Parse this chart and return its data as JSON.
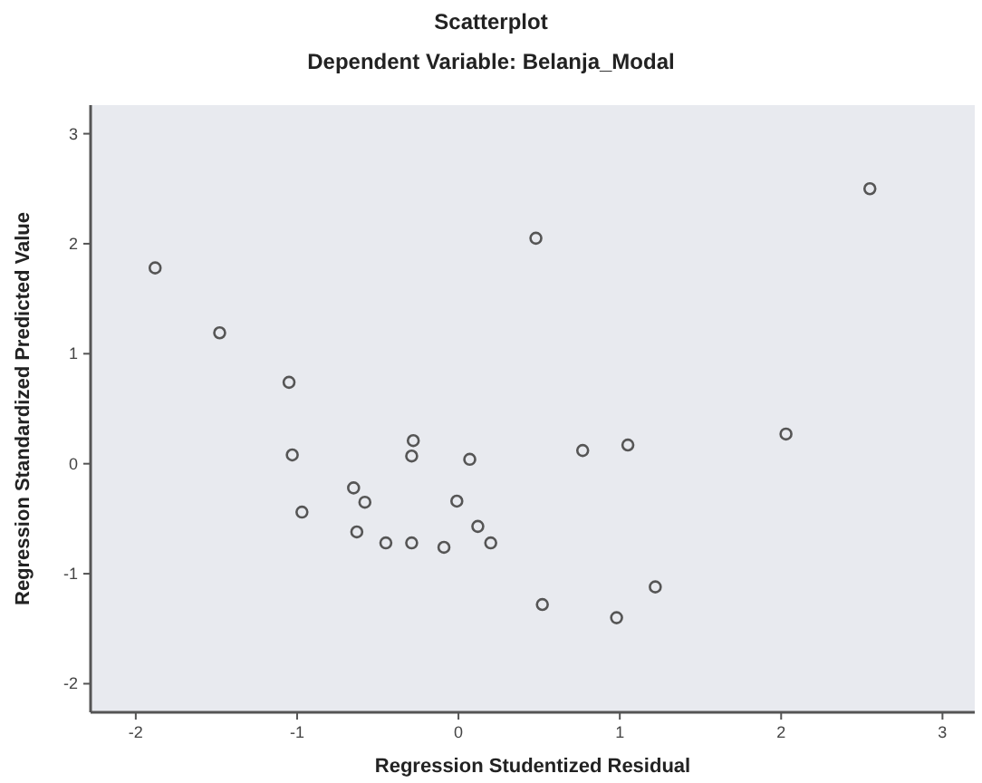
{
  "chart_data": {
    "type": "scatter",
    "title": "Scatterplot",
    "subtitle": "Dependent Variable: Belanja_Modal",
    "xlabel": "Regression Studentized Residual",
    "ylabel": "Regression Standardized Predicted Value",
    "marker": "circle",
    "grid": false,
    "xlim": [
      -2.28,
      3.2
    ],
    "ylim": [
      -2.26,
      3.26
    ],
    "xticks": [
      -2,
      -1,
      0,
      1,
      2,
      3
    ],
    "yticks": [
      -2,
      -1,
      0,
      1,
      2,
      3
    ],
    "series": [
      {
        "color": "#555555",
        "x": [
          -1.88,
          -1.48,
          -1.05,
          -1.03,
          -0.97,
          -0.65,
          -0.58,
          -0.63,
          -0.45,
          -0.28,
          -0.29,
          -0.29,
          -0.09,
          0.07,
          -0.01,
          0.12,
          0.2,
          0.48,
          0.52,
          0.77,
          1.05,
          0.98,
          1.22,
          2.03,
          2.55
        ],
        "values": [
          1.78,
          1.19,
          0.74,
          0.08,
          -0.44,
          -0.22,
          -0.35,
          -0.62,
          -0.72,
          0.21,
          0.07,
          -0.72,
          -0.76,
          0.04,
          -0.34,
          -0.57,
          -0.72,
          2.05,
          -1.28,
          0.12,
          0.17,
          -1.4,
          -1.12,
          0.27,
          2.5
        ]
      }
    ]
  }
}
